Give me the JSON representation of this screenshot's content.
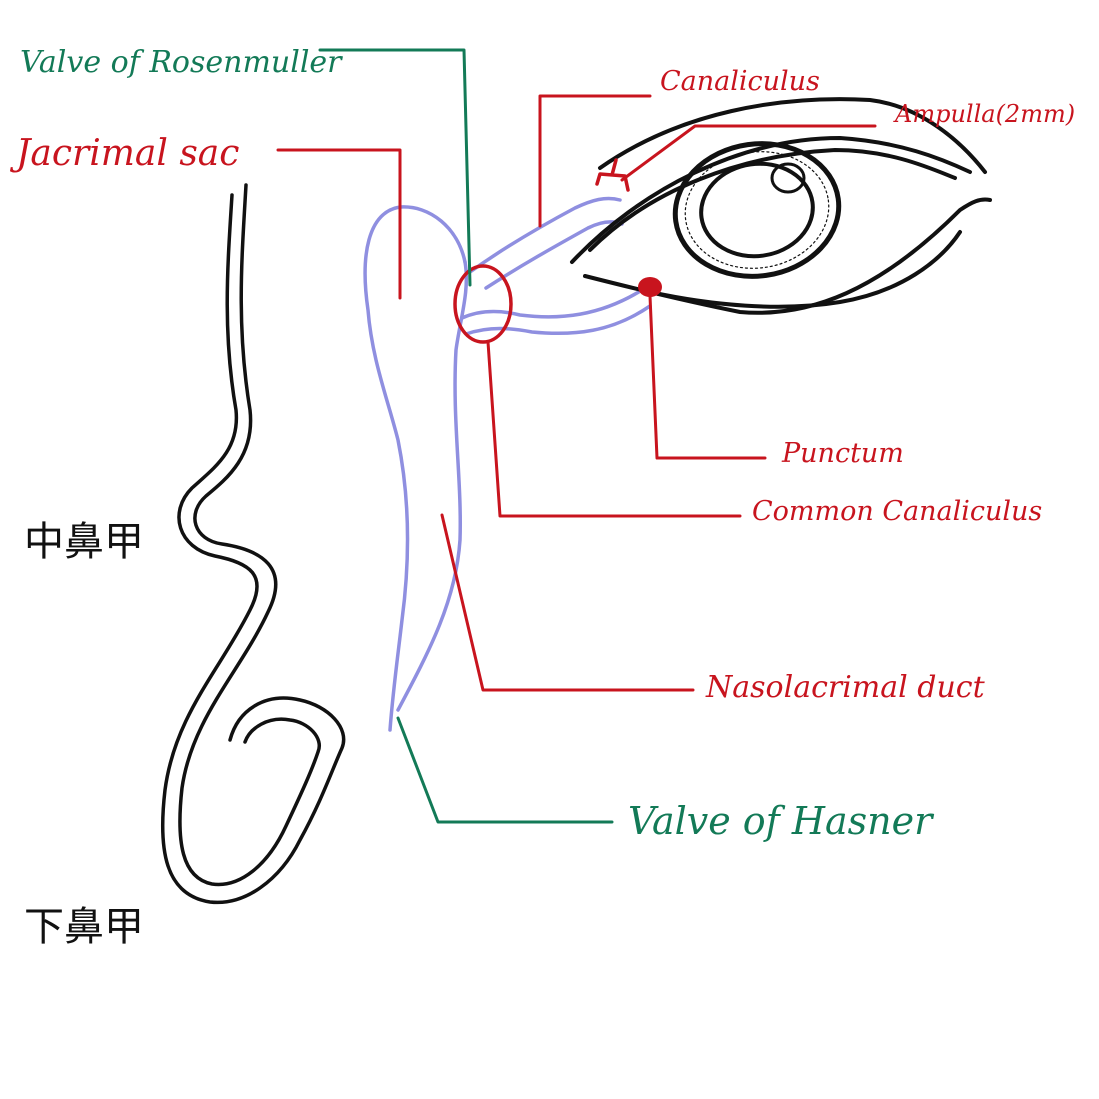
{
  "labels": {
    "valve_rosenmuller": "Valve of Rosenmuller",
    "lacrimal_sac": "Jacrimal sac",
    "canaliculus": "Canaliculus",
    "ampulla": "Ampulla(2mm)",
    "punctum": "Punctum",
    "common_canaliculus": "Common Canaliculus",
    "nasolacrimal_duct": "Nasolacrimal duct",
    "valve_hasner": "Valve of Hasner",
    "middle_turbinate": "中鼻甲",
    "inferior_turbinate": "下鼻甲"
  },
  "colors": {
    "anatomy_label": "#c8141e",
    "valve_label": "#137a57",
    "duct_outline": "#8f8fe0",
    "nasal_wall": "#111111"
  }
}
